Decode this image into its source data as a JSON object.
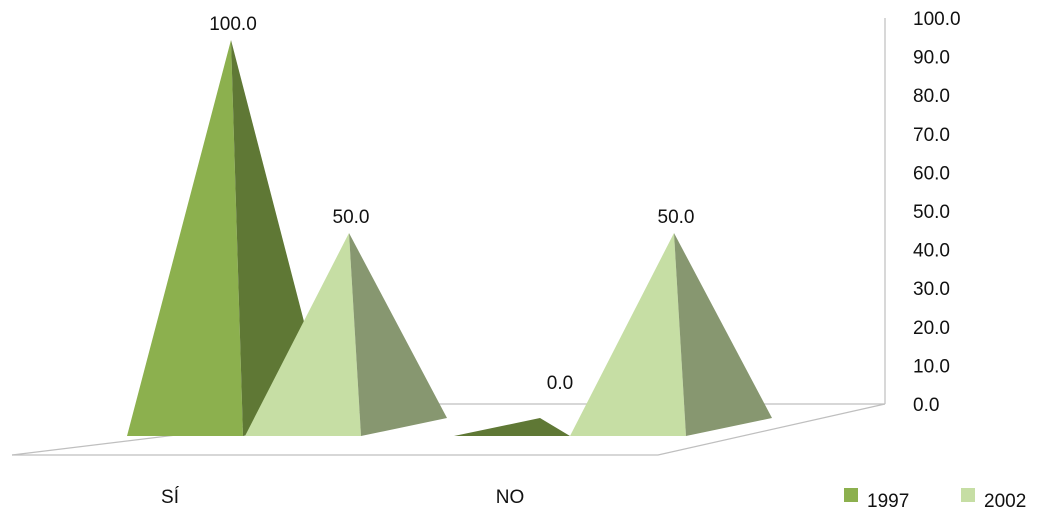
{
  "chart_data": {
    "type": "bar",
    "shape": "pyramid-3d",
    "categories": [
      "SÍ",
      "NO"
    ],
    "series": [
      {
        "name": "1997",
        "values": [
          100.0,
          0.0
        ],
        "color": "#8cb04e"
      },
      {
        "name": "2002",
        "values": [
          50.0,
          50.0
        ],
        "color": "#c6dea4"
      }
    ],
    "data_labels": [
      "100.0",
      "50.0",
      "0.0",
      "50.0"
    ],
    "y_ticks": [
      "0.0",
      "10.0",
      "20.0",
      "30.0",
      "40.0",
      "50.0",
      "60.0",
      "70.0",
      "80.0",
      "90.0",
      "100.0"
    ],
    "ylim": [
      0,
      100
    ],
    "y_axis_side": "right",
    "legend_position": "bottom-right",
    "grid": false,
    "title": "",
    "xlabel": "",
    "ylabel": ""
  }
}
